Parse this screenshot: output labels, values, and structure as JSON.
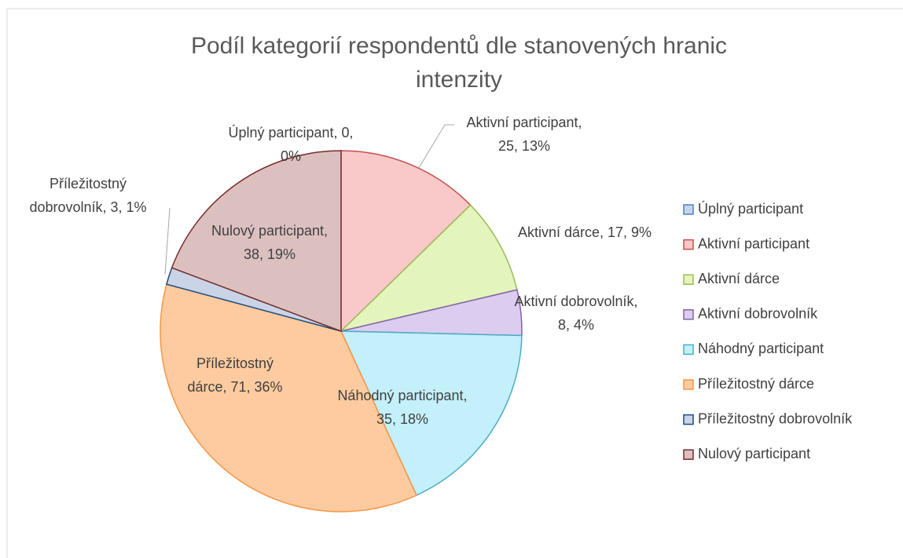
{
  "chart_data": {
    "type": "pie",
    "title": "Podíl kategorií respondentů dle stanovených hranic intenzity",
    "categories": [
      "Úplný participant",
      "Aktivní participant",
      "Aktivní dárce",
      "Aktivní dobrovolník",
      "Náhodný participant",
      "Příležitostný dárce",
      "Příležitostný dobrovolník",
      "Nulový participant"
    ],
    "values": [
      0,
      25,
      17,
      8,
      35,
      71,
      3,
      38
    ],
    "value_labels": [
      "Úplný participant, 0, 0%",
      "Aktivní participant, 25, 13%",
      "Aktivní dárce, 17, 9%",
      "Aktivní dobrovolník, 8, 4%",
      "Náhodný participant, 35, 18%",
      "Příležitostný dárce, 71, 36%",
      "Příležitostný dobrovolník, 3, 1%",
      "Nulový participant, 38, 19%"
    ],
    "colors": [
      "#c5d5ee",
      "#f9c9c9",
      "#e4f4bd",
      "#dccdf0",
      "#c4f0fb",
      "#fdcb9f",
      "#c9d4e6",
      "#dcc0c0"
    ],
    "edge_colors": [
      "#4f81bd",
      "#c0504d",
      "#9bbb59",
      "#8064a2",
      "#4bacc6",
      "#f79646",
      "#1f497d",
      "#772c2a"
    ],
    "legend": "right"
  }
}
